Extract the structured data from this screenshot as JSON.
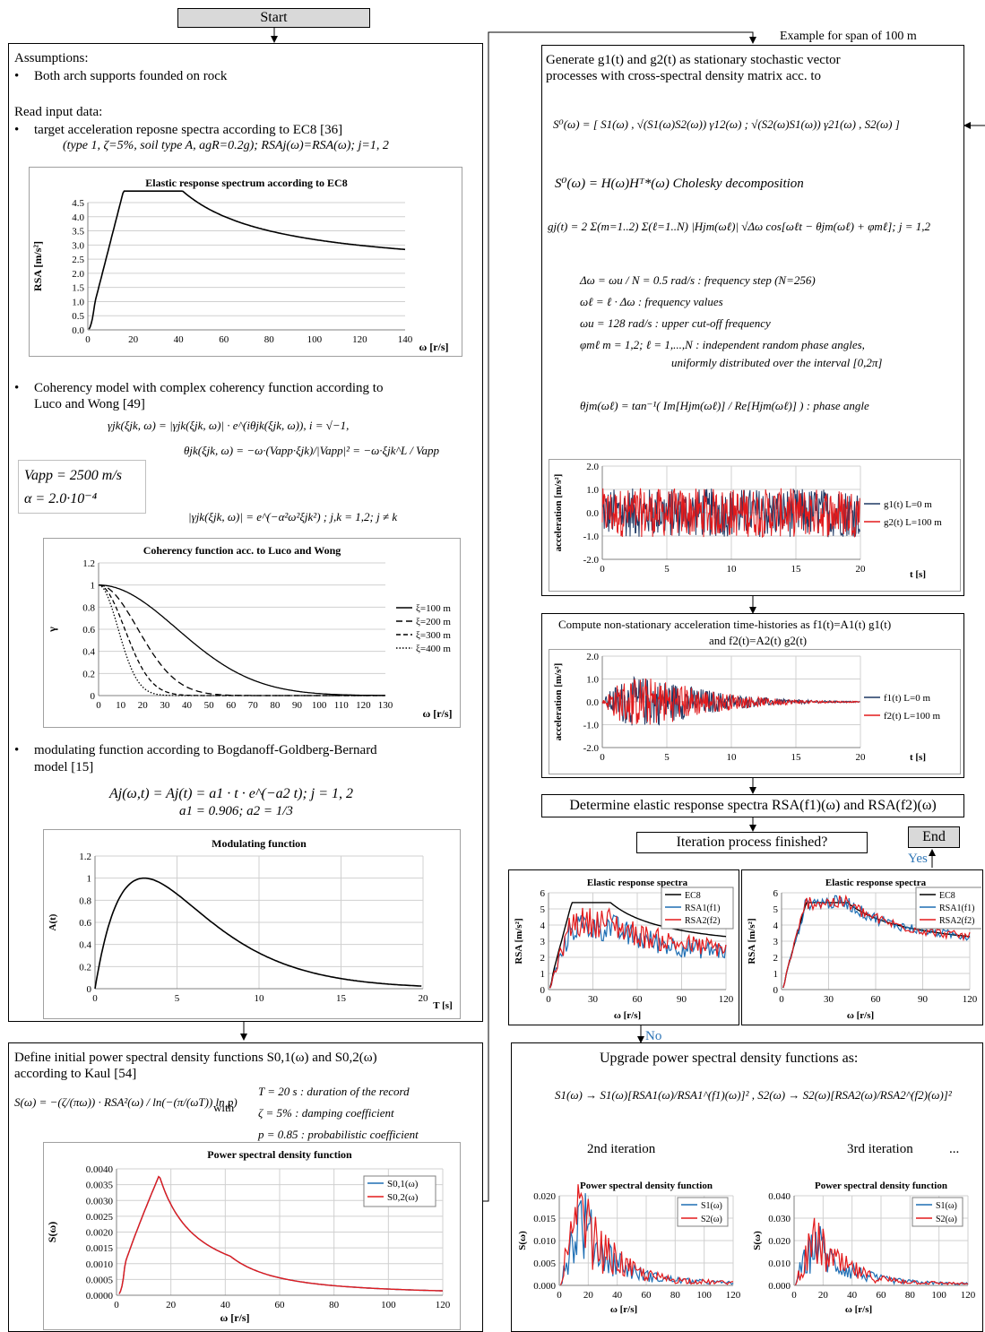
{
  "flow": {
    "start": "Start",
    "end": "End",
    "yes": "Yes",
    "no": "No",
    "example_note": "Example for span of 100 m",
    "iteration_question": "Iteration process finished?",
    "determine_spectra": "Determine elastic response spectra RSA(f1)(ω) and RSA(f2)(ω)"
  },
  "left": {
    "assumptions_title": "Assumptions:",
    "assumption_1": "Both arch supports founded on rock",
    "read_input": "Read input data:",
    "target_spectra": "target acceleration reposne spectra according to EC8 [36]",
    "target_spectra_params": "(type 1, ζ=5%, soil type A, agR=0.2g); RSAj(ω)=RSA(ω); j=1, 2",
    "coherency_title": "Coherency model with complex coherency function according to",
    "coherency_title_2": "Luco and Wong [49]",
    "coh_eq1": "γjk(ξjk, ω) = |γjk(ξjk, ω)| · e^(iθjk(ξjk, ω)),   i = √−1,",
    "coh_eq2": "θjk(ξjk, ω) = −ω·(Vapp·ξjk)/|Vapp|² = −ω·ξjk^L / Vapp",
    "coh_eq3": "|γjk(ξjk, ω)| = e^(−α²ω²ξjk²) ;   j,k = 1,2; j ≠ k",
    "vapp": "Vapp = 2500  m/s",
    "alpha": "α = 2.0·10⁻⁴",
    "modulating_title": "modulating function according to Bogdanoff-Goldberg-Bernard",
    "modulating_title_2": "model [15]",
    "mod_eq1": "Aj(ω,t) = Aj(t) = a1 · t · e^(−a2 t);    j = 1, 2",
    "mod_eq2": "a1 = 0.906; a2 = 1/3",
    "psd_title": "Define initial power spectral density functions S0,1(ω) and S0,2(ω)",
    "psd_title_2": "according to Kaul [54]",
    "psd_eq": "S(ω) = −(ζ/(πω)) · RSA²(ω) / ln(−(π/(ωT)) ln p)",
    "psd_with": "with",
    "psd_p1": "T = 20 s : duration of the record",
    "psd_p2": "ζ = 5% : damping coefficient",
    "psd_p3": "p = 0.85 : probabilistic coefficient"
  },
  "right": {
    "generate_1": "Generate g1(t) and g2(t) as stationary stochastic vector",
    "generate_2": "processes with cross-spectral density matrix acc. to",
    "s0_matrix": "S⁰(ω) = [ S1(ω) , √(S1(ω)S2(ω)) γ12(ω) ; √(S2(ω)S1(ω)) γ21(ω) , S2(ω) ]",
    "cholesky": "S⁰(ω) = H(ω)Hᵀ*(ω)  Cholesky decomposition",
    "gj_eq": "gj(t) = 2 Σ(m=1..2) Σ(ℓ=1..N) |Hjm(ωℓ)| √Δω cos[ωℓt − θjm(ωℓ) + φmℓ];   j = 1,2",
    "p_dw": "Δω = ωu / N = 0.5 rad/s : frequency step (N=256)",
    "p_wl": "ωℓ = ℓ · Δω  : frequency values",
    "p_wu": "ωu = 128 rad/s : upper cut-off frequency",
    "p_phi": "φmℓ    m = 1,2; ℓ = 1,...,N : independent random phase angles,",
    "p_phi2": "uniformly distributed over the interval [0,2π]",
    "p_theta": "θjm(ωℓ) = tan⁻¹( Im[Hjm(ωℓ)] / Re[Hjm(ωℓ)] ) : phase angle",
    "nonstat_1": "Compute non-stationary acceleration time-histories as f1(t)=A1(t) g1(t)",
    "nonstat_2": "and f2(t)=A2(t) g2(t)",
    "upgrade_title": "Upgrade power spectral density functions as:",
    "upgrade_eq": "S1(ω) → S1(ω)[RSA1(ω)/RSA1^(f1)(ω)]² ,   S2(ω) → S2(ω)[RSA2(ω)/RSA2^(f2)(ω)]²",
    "iter2": "2nd iteration",
    "iter3": "3rd iteration",
    "ellipsis": "..."
  },
  "charts": {
    "ec8": {
      "title": "Elastic response spectrum according to EC8",
      "ylabel": "RSA [m/s²]",
      "xlabel": "ω [r/s]",
      "xticks": [
        "0",
        "20",
        "40",
        "60",
        "80",
        "100",
        "120",
        "140"
      ],
      "yticks": [
        "0.0",
        "0.5",
        "1.0",
        "1.5",
        "2.0",
        "2.5",
        "3.0",
        "3.5",
        "4.0",
        "4.5"
      ]
    },
    "coh": {
      "title": "Coherency function acc. to Luco and  Wong",
      "ylabel": "γ",
      "xlabel": "ω [r/s]",
      "xticks": [
        "0",
        "10",
        "20",
        "30",
        "40",
        "50",
        "60",
        "70",
        "80",
        "90",
        "100",
        "110",
        "120",
        "130"
      ],
      "yticks": [
        "0",
        "0.2",
        "0.4",
        "0.6",
        "0.8",
        "1",
        "1.2"
      ],
      "legend": [
        "ξ=100 m",
        "ξ=200 m",
        "ξ=300 m",
        "ξ=400 m"
      ]
    },
    "mod": {
      "title": "Modulating function",
      "ylabel": "A(t)",
      "xlabel": "T [s]",
      "xticks": [
        "0",
        "5",
        "10",
        "15",
        "20"
      ],
      "yticks": [
        "0",
        "0.2",
        "0.4",
        "0.6",
        "0.8",
        "1",
        "1.2"
      ]
    },
    "psd": {
      "title": "Power spectral density function",
      "ylabel": "S(ω)",
      "xlabel": "ω [r/s]",
      "xticks": [
        "0",
        "20",
        "40",
        "60",
        "80",
        "100",
        "120"
      ],
      "yticks": [
        "0.0000",
        "0.0005",
        "0.0010",
        "0.0015",
        "0.0020",
        "0.0025",
        "0.0030",
        "0.0035",
        "0.0040"
      ],
      "legend": [
        "S0,1(ω)",
        "S0,2(ω)"
      ]
    },
    "g": {
      "ylabel": "acceleration [m/s²]",
      "xlabel": "t [s]",
      "xticks": [
        "0",
        "5",
        "10",
        "15",
        "20"
      ],
      "yticks": [
        "-2.0",
        "-1.0",
        "0.0",
        "1.0",
        "2.0"
      ],
      "legend": [
        "g1(t) L=0 m",
        "g2(t) L=100 m"
      ]
    },
    "f": {
      "ylabel": "acceleration [m/s²]",
      "xlabel": "t [s]",
      "xticks": [
        "0",
        "5",
        "10",
        "15",
        "20"
      ],
      "yticks": [
        "-2.0",
        "-1.0",
        "0.0",
        "1.0",
        "2.0"
      ],
      "legend": [
        "f1(t) L=0 m",
        "f2(t) L=100 m"
      ]
    },
    "ers1": {
      "title": "Elastic response spectra",
      "ylabel": "RSA [m/s²]",
      "xlabel": "ω [r/s]",
      "xticks": [
        "0",
        "30",
        "60",
        "90",
        "120"
      ],
      "yticks": [
        "0",
        "1",
        "2",
        "3",
        "4",
        "5",
        "6"
      ],
      "legend": [
        "EC8",
        "RSA1(f1)",
        "RSA2(f2)"
      ]
    },
    "ers2": {
      "title": "Elastic response spectra",
      "ylabel": "RSA [m/s²]",
      "xlabel": "ω [r/s]",
      "xticks": [
        "0",
        "30",
        "60",
        "90",
        "120"
      ],
      "yticks": [
        "0",
        "1",
        "2",
        "3",
        "4",
        "5",
        "6"
      ],
      "legend": [
        "EC8",
        "RSA1(f1)",
        "RSA2(f2)"
      ]
    },
    "psd2": {
      "title": "Power spectral density function",
      "ylabel": "S(ω)",
      "xlabel": "ω [r/s]",
      "xticks": [
        "0",
        "20",
        "40",
        "60",
        "80",
        "100",
        "120"
      ],
      "yticks": [
        "0.000",
        "0.005",
        "0.010",
        "0.015",
        "0.020"
      ],
      "legend": [
        "S1(ω)",
        "S2(ω)"
      ]
    },
    "psd3": {
      "title": "Power spectral density function",
      "ylabel": "S(ω)",
      "xlabel": "ω [r/s]",
      "xticks": [
        "0",
        "20",
        "40",
        "60",
        "80",
        "100",
        "120"
      ],
      "yticks": [
        "0.000",
        "0.010",
        "0.020",
        "0.030",
        "0.040"
      ],
      "legend": [
        "S1(ω)",
        "S2(ω)"
      ]
    }
  },
  "colors": {
    "blue": "#1f6fb4",
    "red": "#e31a1c",
    "navy": "#1f3864",
    "black": "#000000",
    "link": "#2e75b6"
  }
}
